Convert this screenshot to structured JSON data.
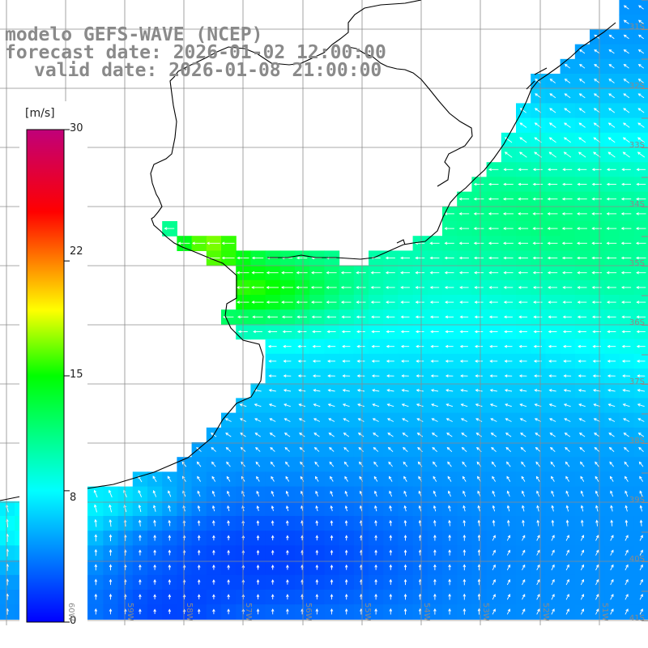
{
  "title": {
    "line1": "modelo GEFS-WAVE (NCEP)",
    "line2": "forecast date: 2026-01-02 12:00:00",
    "line3": "valid date: 2026-01-08 21:00:00"
  },
  "colorbar": {
    "unit": "[m/s]",
    "min": 0,
    "max": 30,
    "ticks": [
      "30",
      "22",
      "15",
      "8",
      "0"
    ],
    "tick_values": [
      30,
      22,
      15,
      8,
      0
    ],
    "colors": [
      "#0000ff",
      "#00ffff",
      "#00ff00",
      "#ffff00",
      "#ff0000",
      "#c0007a"
    ]
  },
  "map": {
    "land_color": "#ffffff",
    "coast_color": "#000000",
    "grid_color": "#8c8c8c",
    "lat_labels": [
      "31S",
      "32S",
      "33S",
      "34S",
      "35S",
      "36S",
      "37S",
      "38S",
      "39S",
      "40S",
      "41S"
    ],
    "lon_labels": [
      "60W",
      "59W",
      "58W",
      "57W",
      "56W",
      "55W",
      "54W",
      "53W",
      "52W",
      "51W"
    ],
    "lon_range": [
      -60.5,
      -50.0
    ],
    "lat_range": [
      -41.5,
      -30.5
    ],
    "wind_direction_note": "arrows mostly from east, pointing west; southern area pointing north"
  }
}
